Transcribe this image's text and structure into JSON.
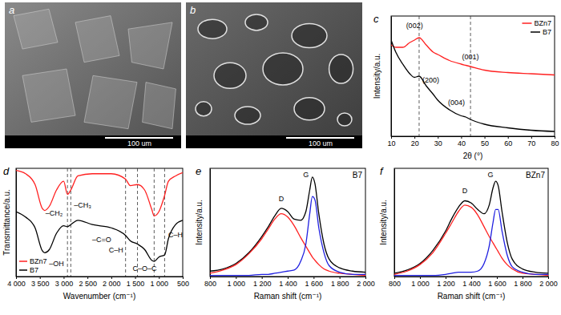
{
  "chart_data": [
    {
      "type": "image",
      "title": "a",
      "scale_bar": "100 um"
    },
    {
      "type": "image",
      "title": "b",
      "scale_bar": "100 um"
    },
    {
      "type": "line",
      "title": "c",
      "xlabel": "2θ (°)",
      "ylabel": "Intensity/a.u.",
      "x": [
        10,
        12,
        15,
        18,
        20,
        22,
        25,
        28,
        30,
        35,
        40,
        42,
        44,
        50,
        60,
        70,
        80
      ],
      "series": [
        {
          "name": "BZn7",
          "color": "#ff2020",
          "values": [
            76,
            74,
            74,
            78,
            80,
            82,
            76,
            70,
            68,
            63,
            60,
            59,
            58,
            55,
            53,
            52,
            51
          ]
        },
        {
          "name": "B7",
          "color": "#000000",
          "values": [
            80,
            70,
            60,
            52,
            49,
            50,
            42,
            35,
            30,
            22,
            17,
            16,
            14,
            10,
            7,
            5,
            4
          ]
        }
      ],
      "xlim": [
        10,
        80
      ],
      "xticks": [
        10,
        20,
        30,
        40,
        50,
        60,
        70,
        80
      ],
      "ylim": [
        0,
        100
      ],
      "tick_labels": "x",
      "legend": "upper right",
      "vlines": {
        "values": [
          22,
          44
        ],
        "line_style": "dashed"
      },
      "annotations": [
        {
          "text": "(002)",
          "x": 20,
          "y": 90
        },
        {
          "text": "(200)",
          "x": 27,
          "y": 45
        },
        {
          "text": "(001)",
          "x": 44,
          "y": 64
        },
        {
          "text": "(004)",
          "x": 38,
          "y": 26
        }
      ]
    },
    {
      "type": "line",
      "title": "d",
      "xlabel": "Wavenumber (cm⁻¹)",
      "ylabel": "Transmittance/a.u.",
      "x": [
        4000,
        3800,
        3600,
        3450,
        3400,
        3300,
        3150,
        3000,
        2920,
        2850,
        2700,
        2400,
        2000,
        1700,
        1600,
        1450,
        1300,
        1150,
        1100,
        1000,
        880,
        800,
        650,
        500
      ],
      "series": [
        {
          "name": "BZn7",
          "color": "#ff2020",
          "values": [
            98,
            95,
            85,
            63,
            61,
            65,
            80,
            88,
            76,
            80,
            93,
            95,
            95,
            90,
            84,
            85,
            80,
            62,
            56,
            60,
            75,
            88,
            93,
            96
          ]
        },
        {
          "name": "B7",
          "color": "#000000",
          "values": [
            60,
            55,
            45,
            24,
            22,
            25,
            40,
            47,
            46,
            48,
            52,
            48,
            45,
            38,
            33,
            30,
            25,
            15,
            14,
            18,
            20,
            35,
            48,
            52
          ]
        }
      ],
      "xlim": [
        4000,
        500
      ],
      "xticks": [
        {
          "value": 4000,
          "label": "4 000"
        },
        {
          "value": 3500,
          "label": "3 500"
        },
        {
          "value": 3000,
          "label": "3 000"
        },
        {
          "value": 2500,
          "label": "2 500"
        },
        {
          "value": 2000,
          "label": "2 000"
        },
        {
          "value": 1500,
          "label": "1 500"
        },
        {
          "value": 1000,
          "label": "1 000"
        },
        500
      ],
      "ylim": [
        0,
        100
      ],
      "tick_labels": "x",
      "legend": "lower left",
      "vlines": {
        "values": [
          2920,
          2850,
          1700,
          1450,
          1100,
          880
        ],
        "line_style": "dashed"
      },
      "annotations": [
        {
          "text": "–OH",
          "x": 3150,
          "y": 10
        },
        {
          "text": "–CH₂",
          "x": 3200,
          "y": 56
        },
        {
          "text": "–CH₃",
          "x": 2600,
          "y": 64
        },
        {
          "text": "–C=O",
          "x": 2200,
          "y": 32
        },
        {
          "text": "C–H",
          "x": 1900,
          "y": 22
        },
        {
          "text": "C–O–C",
          "x": 1300,
          "y": 5
        },
        {
          "text": "C–H",
          "x": 650,
          "y": 36
        }
      ]
    },
    {
      "type": "line",
      "title": "e",
      "subtitle": "B7",
      "xlabel": "Raman shift (cm⁻¹)",
      "ylabel": "Intensity/a.u.",
      "x": [
        800,
        900,
        1000,
        1100,
        1200,
        1250,
        1300,
        1350,
        1400,
        1450,
        1500,
        1540,
        1570,
        1590,
        1610,
        1640,
        1680,
        1720,
        1800,
        1900,
        2000
      ],
      "series": [
        {
          "color": "#000000",
          "values": [
            5,
            7,
            12,
            22,
            37,
            46,
            56,
            63,
            60,
            53,
            52,
            60,
            80,
            92,
            86,
            58,
            30,
            16,
            8,
            5,
            4
          ]
        },
        {
          "color": "#ff2020",
          "values": [
            3,
            6,
            11,
            21,
            35,
            44,
            53,
            58,
            55,
            47,
            36,
            28,
            22,
            18,
            15,
            11,
            7,
            5,
            3,
            2,
            1
          ]
        },
        {
          "color": "#1f1fe0",
          "values": [
            1,
            1,
            1,
            1,
            2,
            2,
            3,
            4,
            5,
            6,
            14,
            30,
            58,
            74,
            71,
            45,
            22,
            10,
            4,
            2,
            2
          ]
        }
      ],
      "xlim": [
        800,
        2000
      ],
      "xticks": [
        800,
        {
          "value": 1000,
          "label": "1 000"
        },
        {
          "value": 1200,
          "label": "1 200"
        },
        {
          "value": 1400,
          "label": "1 400"
        },
        {
          "value": 1600,
          "label": "1 600"
        },
        {
          "value": 1800,
          "label": "1 800"
        },
        {
          "value": 2000,
          "label": "2 000"
        }
      ],
      "ylim": [
        0,
        100
      ],
      "tick_labels": "x",
      "annotations": [
        {
          "text": "D",
          "x": 1350,
          "y": 70
        },
        {
          "text": "G",
          "x": 1540,
          "y": 92
        }
      ]
    },
    {
      "type": "line",
      "title": "f",
      "subtitle": "BZn7",
      "xlabel": "Raman shift (cm⁻¹)",
      "ylabel": "Intensity/a.u.",
      "x": [
        800,
        900,
        1000,
        1100,
        1200,
        1250,
        1300,
        1350,
        1400,
        1450,
        1500,
        1540,
        1570,
        1590,
        1610,
        1640,
        1680,
        1720,
        1800,
        1900,
        2000
      ],
      "series": [
        {
          "color": "#000000",
          "values": [
            3,
            6,
            12,
            24,
            42,
            54,
            64,
            70,
            68,
            62,
            58,
            66,
            82,
            88,
            84,
            60,
            32,
            16,
            7,
            4,
            3
          ]
        },
        {
          "color": "#ff2020",
          "values": [
            2,
            5,
            11,
            22,
            40,
            50,
            60,
            66,
            64,
            57,
            46,
            37,
            31,
            27,
            23,
            17,
            11,
            7,
            3,
            2,
            1
          ]
        },
        {
          "color": "#1f1fe0",
          "values": [
            1,
            1,
            1,
            1,
            2,
            3,
            4,
            4,
            4,
            5,
            12,
            28,
            50,
            62,
            62,
            42,
            20,
            9,
            4,
            2,
            2
          ]
        }
      ],
      "xlim": [
        800,
        2000
      ],
      "xticks": [
        800,
        {
          "value": 1000,
          "label": "1 000"
        },
        {
          "value": 1200,
          "label": "1 200"
        },
        {
          "value": 1400,
          "label": "1 400"
        },
        {
          "value": 1600,
          "label": "1 600"
        },
        {
          "value": 1800,
          "label": "1 800"
        },
        {
          "value": 2000,
          "label": "2 000"
        }
      ],
      "ylim": [
        0,
        100
      ],
      "tick_labels": "x",
      "annotations": [
        {
          "text": "D",
          "x": 1350,
          "y": 77
        },
        {
          "text": "G",
          "x": 1550,
          "y": 92
        }
      ]
    }
  ]
}
